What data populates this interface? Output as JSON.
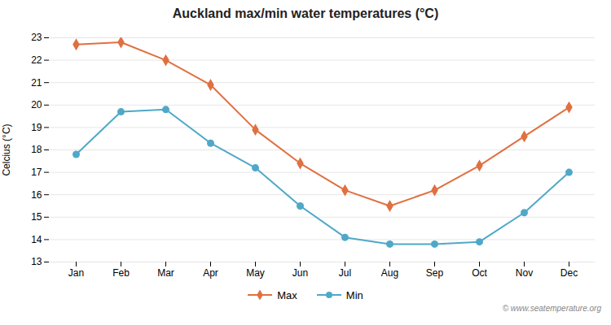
{
  "chart_data": {
    "type": "line",
    "title": "Auckland max/min water temperatures (°C)",
    "ylabel": "Celcius (°C)",
    "categories": [
      "Jan",
      "Feb",
      "Mar",
      "Apr",
      "May",
      "Jun",
      "Jul",
      "Aug",
      "Sep",
      "Oct",
      "Nov",
      "Dec"
    ],
    "series": [
      {
        "name": "Max",
        "color": "#e07040",
        "marker": "diamond",
        "values": [
          22.7,
          22.8,
          22.0,
          20.9,
          18.9,
          17.4,
          16.2,
          15.5,
          16.2,
          17.3,
          18.6,
          19.9
        ]
      },
      {
        "name": "Min",
        "color": "#4fa8c8",
        "marker": "circle",
        "values": [
          17.8,
          19.7,
          19.8,
          18.3,
          17.2,
          15.5,
          14.1,
          13.8,
          13.8,
          13.9,
          15.2,
          17.0
        ]
      }
    ],
    "ylim": [
      13,
      23
    ],
    "yticks": [
      13,
      14,
      15,
      16,
      17,
      18,
      19,
      20,
      21,
      22,
      23
    ],
    "grid": true,
    "legend": "bottom",
    "annotations": [
      "© www.seatemperature.org"
    ]
  }
}
